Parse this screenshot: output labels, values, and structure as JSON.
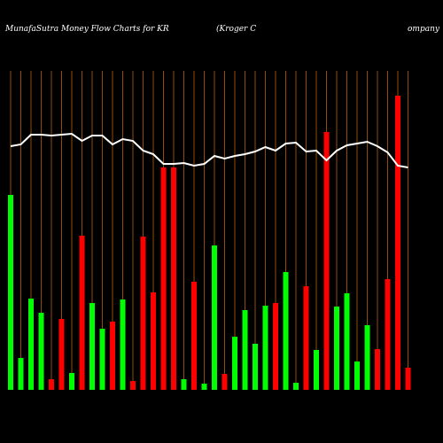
{
  "chart_data": {
    "type": "bar",
    "title": "MunafaSutra  Money Flow  Charts for KR",
    "subtitle_parts": [
      "(Kroger C",
      "ompany"
    ],
    "ylim": [
      0,
      360
    ],
    "grid_color": "#b8620c",
    "bars": {
      "values": [
        220,
        36,
        103,
        87,
        12,
        80,
        19,
        174,
        98,
        69,
        77,
        102,
        10,
        173,
        110,
        251,
        251,
        12,
        122,
        7,
        163,
        18,
        60,
        90,
        52,
        95,
        98,
        133,
        8,
        117,
        45,
        291,
        94,
        109,
        32,
        73,
        46,
        125,
        332,
        25
      ],
      "colors": [
        "#00ff00",
        "#00ff00",
        "#00ff00",
        "#00ff00",
        "#ff0000",
        "#ff0000",
        "#00ff00",
        "#ff0000",
        "#00ff00",
        "#00ff00",
        "#ff0000",
        "#00ff00",
        "#ff0000",
        "#ff0000",
        "#ff0000",
        "#ff0000",
        "#ff0000",
        "#00ff00",
        "#ff0000",
        "#00ff00",
        "#00ff00",
        "#ff0000",
        "#00ff00",
        "#00ff00",
        "#00ff00",
        "#00ff00",
        "#ff0000",
        "#00ff00",
        "#00ff00",
        "#ff0000",
        "#00ff00",
        "#ff0000",
        "#00ff00",
        "#00ff00",
        "#00ff00",
        "#00ff00",
        "#ff0000",
        "#ff0000",
        "#ff0000",
        "#ff0000"
      ]
    },
    "line": {
      "color": "#ffffff",
      "values": [
        275,
        277,
        288,
        288,
        287,
        288,
        289,
        281,
        287,
        287,
        277,
        283,
        281,
        270,
        266,
        255,
        255,
        256,
        253,
        255,
        264,
        261,
        264,
        266,
        269,
        274,
        270,
        278,
        279,
        269,
        270,
        259,
        270,
        276,
        278,
        280,
        275,
        268,
        253,
        251
      ]
    }
  }
}
